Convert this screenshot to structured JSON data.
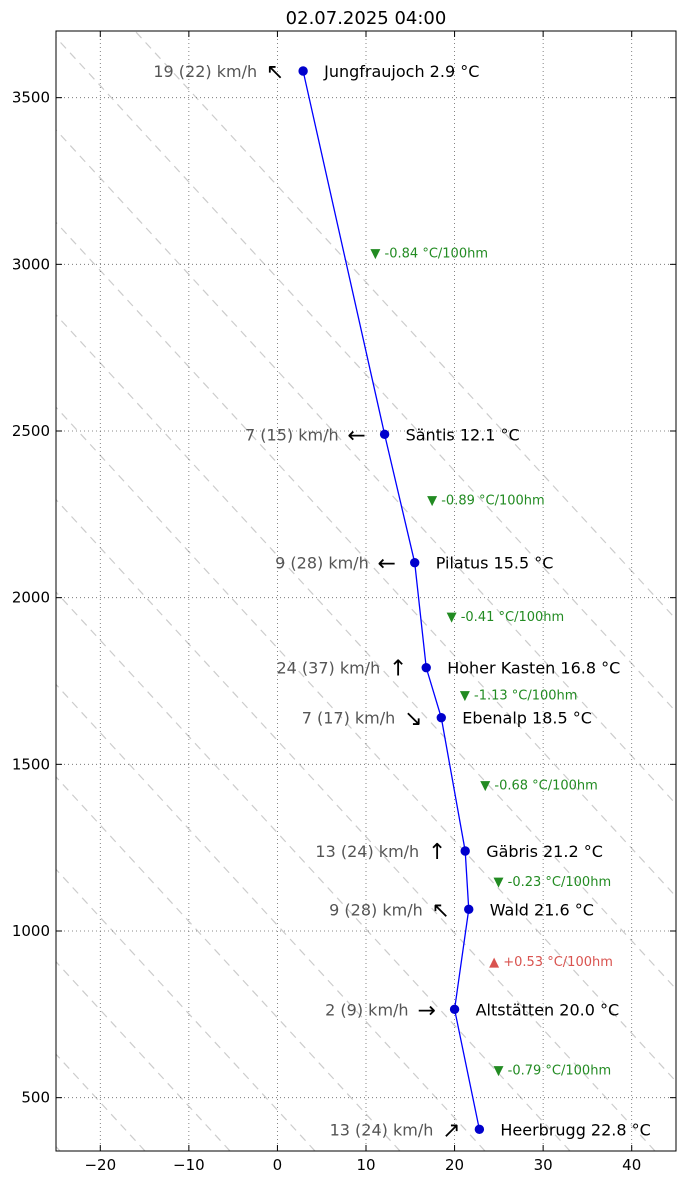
{
  "chart_data": {
    "type": "line",
    "title": "02.07.2025 04:00",
    "xlim": [
      -25,
      45
    ],
    "ylim": [
      340,
      3700
    ],
    "xticks": [
      -20,
      -10,
      0,
      10,
      20,
      30,
      40
    ],
    "yticks": [
      500,
      1000,
      1500,
      2000,
      2500,
      3000,
      3500
    ],
    "grid": true,
    "dry_adiabat_background": true,
    "series": [
      {
        "points": [
          {
            "station": "Jungfraujoch",
            "temp": 2.9,
            "alt": 3580,
            "label": "Jungfraujoch 2.9 °C",
            "wind": "19 (22) km/h",
            "arrow": "↖"
          },
          {
            "station": "Säntis",
            "temp": 12.1,
            "alt": 2490,
            "label": "Säntis 12.1 °C",
            "wind": "7 (15) km/h",
            "arrow": "←"
          },
          {
            "station": "Pilatus",
            "temp": 15.5,
            "alt": 2105,
            "label": "Pilatus 15.5 °C",
            "wind": "9 (28) km/h",
            "arrow": "←"
          },
          {
            "station": "Hoher Kasten",
            "temp": 16.8,
            "alt": 1790,
            "label": "Hoher Kasten 16.8 °C",
            "wind": "24 (37) km/h",
            "arrow": "↑"
          },
          {
            "station": "Ebenalp",
            "temp": 18.5,
            "alt": 1640,
            "label": "Ebenalp 18.5 °C",
            "wind": "7 (17) km/h",
            "arrow": "↘"
          },
          {
            "station": "Gäbris",
            "temp": 21.2,
            "alt": 1240,
            "label": "Gäbris 21.2 °C",
            "wind": "13 (24) km/h",
            "arrow": "↑"
          },
          {
            "station": "Wald",
            "temp": 21.6,
            "alt": 1065,
            "label": "Wald 21.6 °C",
            "wind": "9 (28) km/h",
            "arrow": "↖"
          },
          {
            "station": "Altstätten",
            "temp": 20.0,
            "alt": 765,
            "label": "Altstätten 20.0 °C",
            "wind": "2 (9) km/h",
            "arrow": "→"
          },
          {
            "station": "Heerbrugg",
            "temp": 22.8,
            "alt": 405,
            "label": "Heerbrugg 22.8 °C",
            "wind": "13 (24) km/h",
            "arrow": "↗"
          }
        ]
      }
    ],
    "lapse_rates": [
      {
        "text": "▼ -0.84 °C/100hm",
        "x": 10.5,
        "alt": 3035,
        "color": "#228b22"
      },
      {
        "text": "▼ -0.89 °C/100hm",
        "x": 16.9,
        "alt": 2295,
        "color": "#228b22"
      },
      {
        "text": "▼ -0.41 °C/100hm",
        "x": 19.1,
        "alt": 1945,
        "color": "#228b22"
      },
      {
        "text": "▼ -1.13 °C/100hm",
        "x": 20.6,
        "alt": 1710,
        "color": "#228b22"
      },
      {
        "text": "▼ -0.68 °C/100hm",
        "x": 22.9,
        "alt": 1440,
        "color": "#228b22"
      },
      {
        "text": "▼ -0.23 °C/100hm",
        "x": 24.4,
        "alt": 1150,
        "color": "#228b22"
      },
      {
        "text": "▲ +0.53 °C/100hm",
        "x": 23.9,
        "alt": 910,
        "color": "#d9534f"
      },
      {
        "text": "▼ -0.79 °C/100hm",
        "x": 24.4,
        "alt": 585,
        "color": "#228b22"
      }
    ],
    "colors": {
      "line": "#0000ff",
      "marker": "#0000cc",
      "grid": "#666666",
      "adiabat": "#cccccc"
    }
  }
}
